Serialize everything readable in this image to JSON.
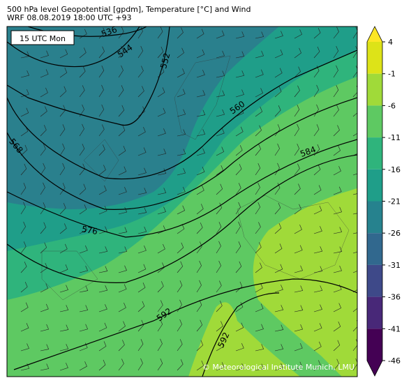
{
  "header": {
    "title": "500 hPa level Geopotential [gpdm], Temperature [°C] and Wind",
    "subtitle": "WRF 08.08.2019 18:00 UTC +93"
  },
  "map": {
    "time_label": "15 UTC Mon",
    "contour_labels": [
      "536",
      "544",
      "552",
      "560",
      "568",
      "576",
      "584",
      "592",
      "592"
    ],
    "credit": "© Meteorological Institute Munich, LMU"
  },
  "colorbar": {
    "lim": [
      -46,
      4
    ],
    "ticks": [
      4,
      -1,
      -6,
      -11,
      -16,
      -21,
      -26,
      -31,
      -36,
      -41,
      -46
    ],
    "colors": [
      "#dde318",
      "#a0da39",
      "#5ec962",
      "#2fb47c",
      "#1f9e89",
      "#26828e",
      "#31688e",
      "#3e4989",
      "#482878",
      "#440154"
    ],
    "over_color": "#fde725",
    "under_color": "#440154"
  }
}
